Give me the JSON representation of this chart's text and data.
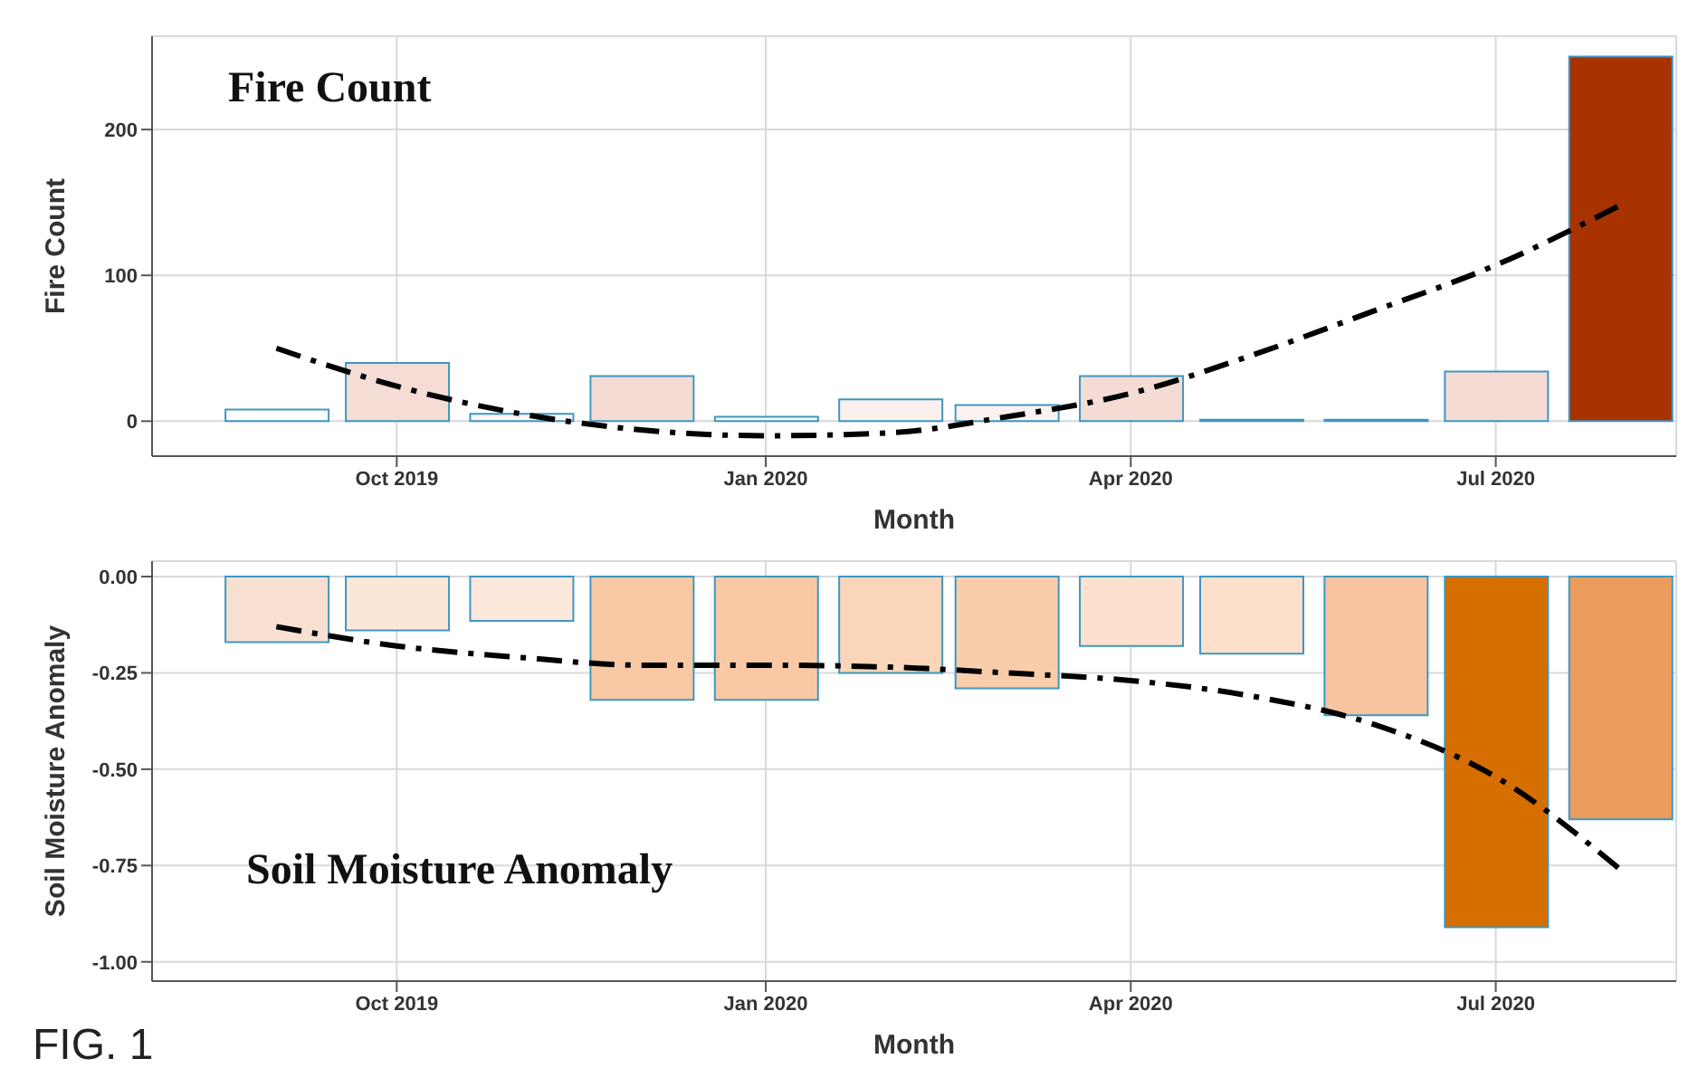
{
  "chart_data": [
    {
      "type": "bar",
      "title": "Fire Count",
      "xlabel": "Month",
      "ylabel": "Fire Count",
      "x": [
        "2019-09",
        "2019-10",
        "2019-11",
        "2019-12",
        "2020-01",
        "2020-02",
        "2020-03",
        "2020-04",
        "2020-05",
        "2020-06",
        "2020-07",
        "2020-08"
      ],
      "series": [
        {
          "values": [
            8,
            40,
            5,
            31,
            3,
            15,
            11,
            31,
            1,
            1,
            34,
            250
          ],
          "colors": [
            "#ffffff",
            "#f5dcd5",
            "#fdf5f3",
            "#f4dcd4",
            "#fdf7f5",
            "#faf0ec",
            "#fbf2ef",
            "#f4dcd4",
            "#fefefe",
            "#fefefe",
            "#f4dcd4",
            "#a83200"
          ]
        },
        {
          "type": "line",
          "color": "#000000",
          "line_style": "dashed",
          "marker": "none",
          "values": [
            50,
            24,
            5,
            -6,
            -10,
            -8,
            3,
            19,
            45,
            76,
            107,
            148
          ]
        }
      ],
      "xlim": [
        "2019-08",
        "2020-08-15"
      ],
      "xticks": [
        {
          "value": "2019-10",
          "label": "Oct 2019"
        },
        {
          "value": "2020-01",
          "label": "Jan 2020"
        },
        {
          "value": "2020-04",
          "label": "Apr 2020"
        },
        {
          "value": "2020-07",
          "label": "Jul 2020"
        }
      ],
      "ylim": [
        -24,
        264
      ],
      "yticks": [
        0,
        100,
        200
      ],
      "grid": true
    },
    {
      "type": "bar",
      "title": "Soil Moisture Anomaly",
      "xlabel": "Month",
      "ylabel": "Soil Moisture Anomaly",
      "x": [
        "2019-09",
        "2019-10",
        "2019-11",
        "2019-12",
        "2020-01",
        "2020-02",
        "2020-03",
        "2020-04",
        "2020-05",
        "2020-06",
        "2020-07",
        "2020-08"
      ],
      "series": [
        {
          "values": [
            -0.17,
            -0.14,
            -0.115,
            -0.32,
            -0.32,
            -0.25,
            -0.29,
            -0.18,
            -0.2,
            -0.36,
            -0.91,
            -0.63
          ],
          "colors": [
            "#f7e0d2",
            "#fbe6d8",
            "#fce9dc",
            "#f9c9a6",
            "#f9c9a6",
            "#fbd5ba",
            "#f9cdaa",
            "#fde0cf",
            "#fce0cc",
            "#f8c4a0",
            "#d66e00",
            "#eb9c5c"
          ]
        },
        {
          "type": "line",
          "color": "#000000",
          "line_style": "dashed",
          "marker": "none",
          "values": [
            -0.13,
            -0.18,
            -0.21,
            -0.23,
            -0.23,
            -0.235,
            -0.25,
            -0.27,
            -0.31,
            -0.385,
            -0.52,
            -0.76
          ]
        }
      ],
      "xlim": [
        "2019-08",
        "2020-08-15"
      ],
      "xticks": [
        {
          "value": "2019-10",
          "label": "Oct 2019"
        },
        {
          "value": "2020-01",
          "label": "Jan 2020"
        },
        {
          "value": "2020-04",
          "label": "Apr 2020"
        },
        {
          "value": "2020-07",
          "label": "Jul 2020"
        }
      ],
      "ylim": [
        -1.05,
        0.04
      ],
      "yticks": [
        {
          "value": 0,
          "label": "0.00"
        },
        {
          "value": -0.25,
          "label": "-0.25"
        },
        {
          "value": -0.5,
          "label": "-0.50"
        },
        {
          "value": -0.75,
          "label": "-0.75"
        },
        {
          "value": -1,
          "label": "-1.00"
        }
      ],
      "grid": true,
      "annotations": [
        "FIG. 1"
      ]
    }
  ]
}
